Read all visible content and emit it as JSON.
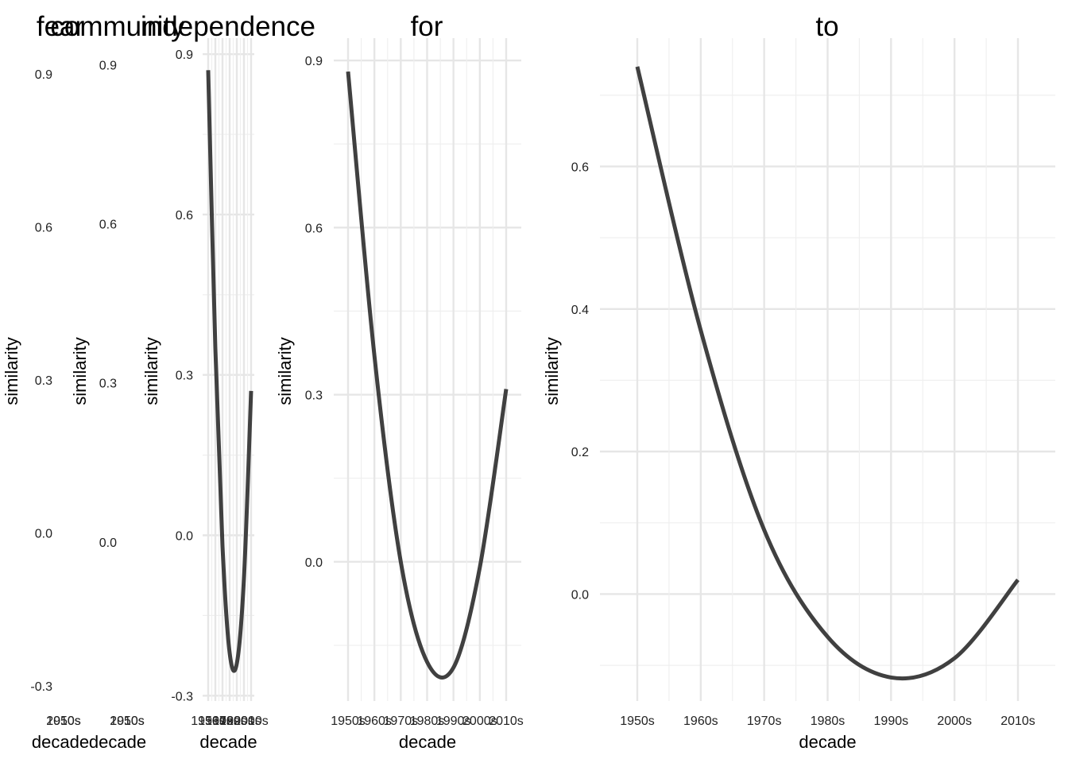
{
  "chart_data": [
    {
      "type": "line",
      "title": "fear",
      "xlabel": "decade",
      "ylabel": "similarity",
      "x": [
        "1950s",
        "2010s"
      ],
      "yticks": [
        -0.3,
        0.0,
        0.3,
        0.6,
        0.9
      ],
      "ylim": [
        -0.33,
        0.97
      ],
      "series": [],
      "grid": true
    },
    {
      "type": "line",
      "title": "community",
      "xlabel": "decade",
      "ylabel": "similarity",
      "x": [
        "1950s",
        "2010s"
      ],
      "yticks": [
        0.0,
        0.3,
        0.6,
        0.9
      ],
      "ylim": [
        -0.3,
        0.95
      ],
      "series": [],
      "grid": true
    },
    {
      "type": "line",
      "title": "independence",
      "xlabel": "decade",
      "ylabel": "similarity",
      "x": [
        "1950s",
        "1960s",
        "1970s",
        "1980s",
        "1990s",
        "2000s",
        "2010s"
      ],
      "yticks": [
        -0.3,
        0.0,
        0.3,
        0.6,
        0.9
      ],
      "ylim": [
        -0.31,
        0.93
      ],
      "series": [
        {
          "values": [
            0.87,
            0.35,
            -0.02,
            -0.22,
            -0.24,
            -0.08,
            0.27
          ]
        }
      ],
      "grid": true
    },
    {
      "type": "line",
      "title": "for",
      "xlabel": "decade",
      "ylabel": "similarity",
      "x": [
        "1950s",
        "1960s",
        "1970s",
        "1980s",
        "1990s",
        "2000s",
        "2010s"
      ],
      "yticks": [
        0.0,
        0.3,
        0.6,
        0.9
      ],
      "ylim": [
        -0.25,
        0.94
      ],
      "series": [
        {
          "values": [
            0.88,
            0.37,
            0.0,
            -0.18,
            -0.19,
            -0.01,
            0.31
          ]
        }
      ],
      "grid": true
    },
    {
      "type": "line",
      "title": "to",
      "xlabel": "decade",
      "ylabel": "similarity",
      "x": [
        "1950s",
        "1960s",
        "1970s",
        "1980s",
        "1990s",
        "2000s",
        "2010s"
      ],
      "yticks": [
        0.0,
        0.2,
        0.4,
        0.6
      ],
      "ylim": [
        -0.15,
        0.78
      ],
      "series": [
        {
          "values": [
            0.74,
            0.37,
            0.09,
            -0.06,
            -0.117,
            -0.09,
            0.02
          ]
        }
      ],
      "grid": true
    }
  ]
}
